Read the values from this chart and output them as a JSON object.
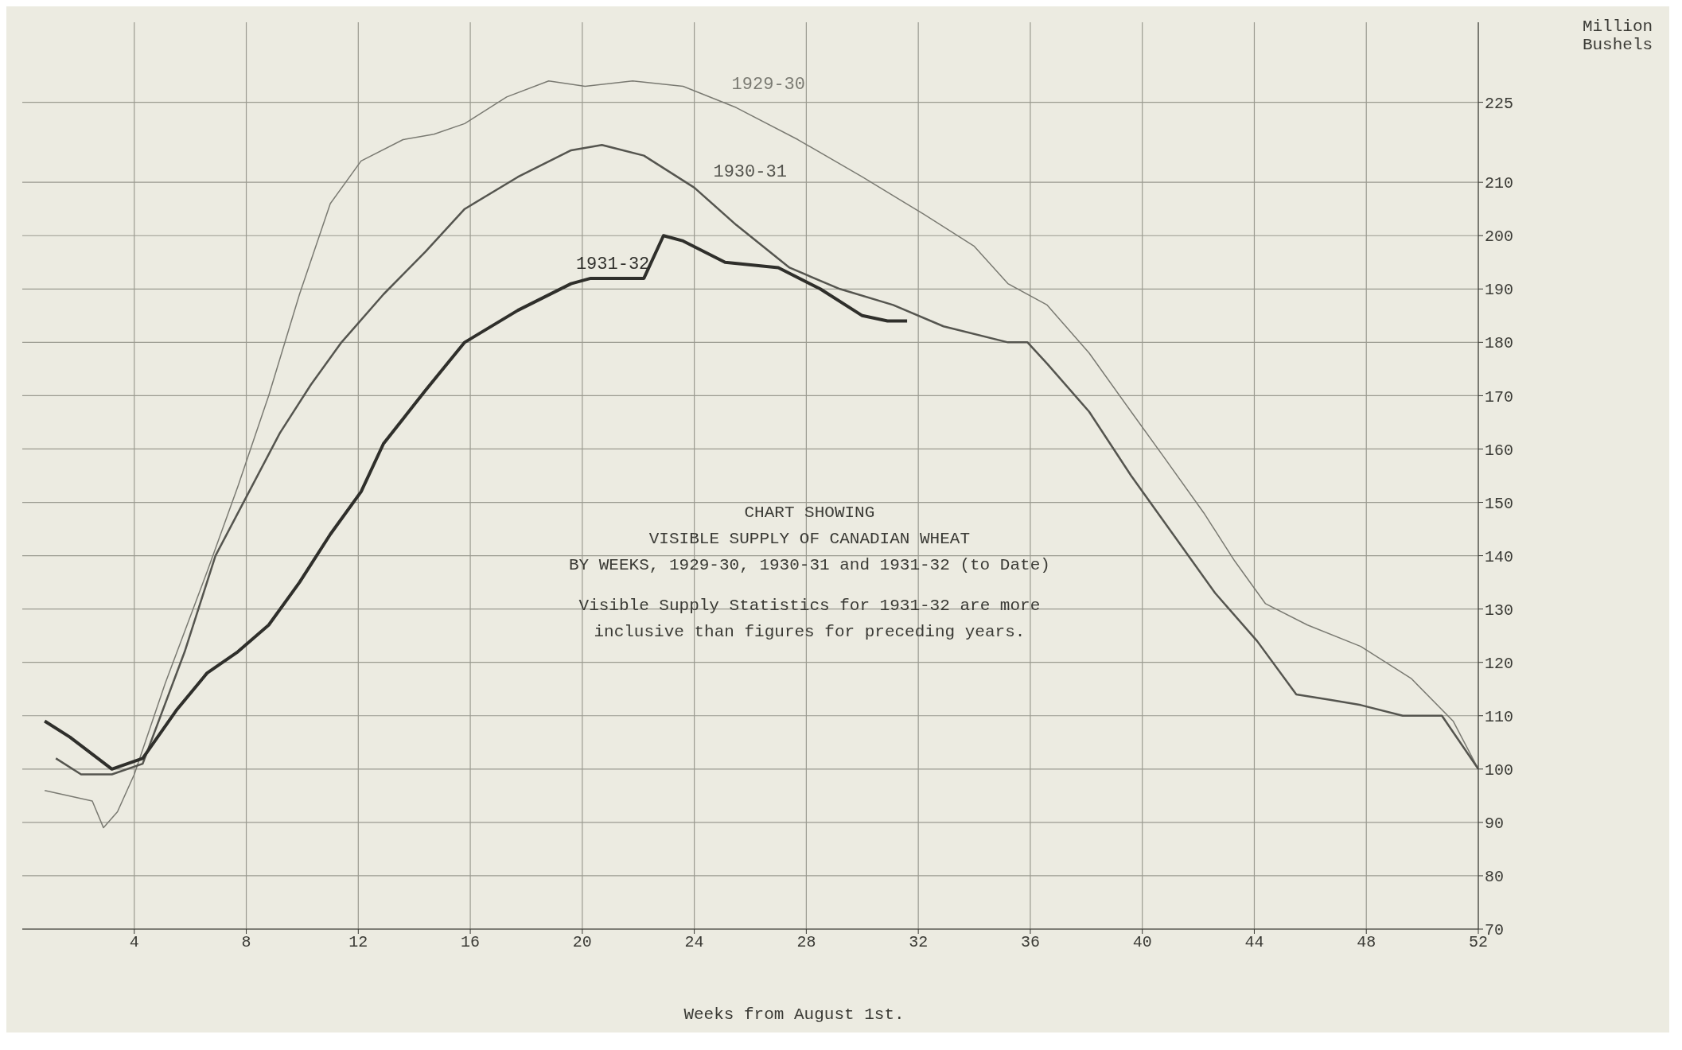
{
  "chart_data": {
    "type": "line",
    "title": "CHART SHOWING\nVISIBLE SUPPLY OF CANADIAN WHEAT\nBY WEEKS, 1929-30, 1930-31 and 1931-32 (to Date)",
    "annotations": [
      "Visible Supply Statistics for 1931-32 are more\ninclusive than figures for preceding years."
    ],
    "xlabel": "Weeks from August 1st.",
    "ylabel": "Million\nBushels",
    "xlim": [
      0,
      52
    ],
    "xticks": [
      4,
      8,
      12,
      16,
      20,
      24,
      28,
      32,
      36,
      40,
      44,
      48,
      52
    ],
    "ylim": [
      70,
      240
    ],
    "yticks": [
      70,
      80,
      90,
      100,
      110,
      120,
      130,
      140,
      150,
      160,
      170,
      180,
      190,
      200,
      210,
      225
    ],
    "grid": true,
    "marker": "none",
    "line_style": "solid",
    "series": [
      {
        "name": "1929-30",
        "color": "#7a7a72",
        "x": [
          0.8,
          2.5,
          2.9,
          3.4,
          4,
          5.1,
          6.6,
          7.7,
          8.8,
          9.9,
          11,
          12.1,
          13.6,
          14.7,
          15.8,
          17.3,
          18.8,
          20.1,
          21.8,
          23.6,
          25.5,
          27.7,
          30,
          32.2,
          34,
          35.2,
          36.6,
          38.1,
          39.6,
          40.7,
          42.2,
          43.3,
          44.4,
          45.9,
          47.8,
          49.6,
          51.1,
          52
        ],
        "values": [
          96,
          94,
          89,
          92,
          99,
          116,
          137,
          153,
          170,
          189,
          206,
          214,
          218,
          219,
          221,
          226,
          229,
          228,
          229,
          228,
          224,
          218,
          211,
          204,
          198,
          191,
          187,
          178,
          167,
          159,
          148,
          139,
          131,
          127,
          123,
          117,
          109,
          100
        ]
      },
      {
        "name": "1930-31",
        "color": "#55554f",
        "x": [
          1.2,
          2.1,
          3.2,
          4.3,
          5.8,
          6.9,
          8.1,
          9.2,
          10.3,
          11.4,
          12.9,
          14.4,
          15.8,
          17.7,
          19.6,
          20.7,
          22.2,
          24,
          25.5,
          27.4,
          29.2,
          31.1,
          32.9,
          35.2,
          35.9,
          36.6,
          38.1,
          39.6,
          41.1,
          42.6,
          44.1,
          45.5,
          46.7,
          47.8,
          49.3,
          50.7,
          52
        ],
        "values": [
          102,
          99,
          99,
          101,
          122,
          140,
          152,
          163,
          172,
          180,
          189,
          197,
          205,
          211,
          216,
          217,
          215,
          209,
          202,
          194,
          190,
          187,
          183,
          180,
          180,
          176,
          167,
          155,
          144,
          133,
          124,
          114,
          113,
          112,
          110,
          110,
          100
        ]
      },
      {
        "name": "1931-32",
        "color": "#2f2f2b",
        "x": [
          0.8,
          1.7,
          3.2,
          4.3,
          5.5,
          6.6,
          7.7,
          8.8,
          9.9,
          11,
          12.1,
          12.9,
          14.4,
          15.8,
          17.7,
          19.6,
          20.3,
          22.2,
          22.9,
          23.6,
          25.1,
          27,
          28.5,
          30,
          30.9,
          31.6
        ],
        "values": [
          109,
          106,
          100,
          102,
          111,
          118,
          122,
          127,
          135,
          144,
          152,
          161,
          171,
          180,
          186,
          191,
          192,
          192,
          200,
          199,
          195,
          194,
          190,
          185,
          184,
          184
        ]
      }
    ]
  }
}
